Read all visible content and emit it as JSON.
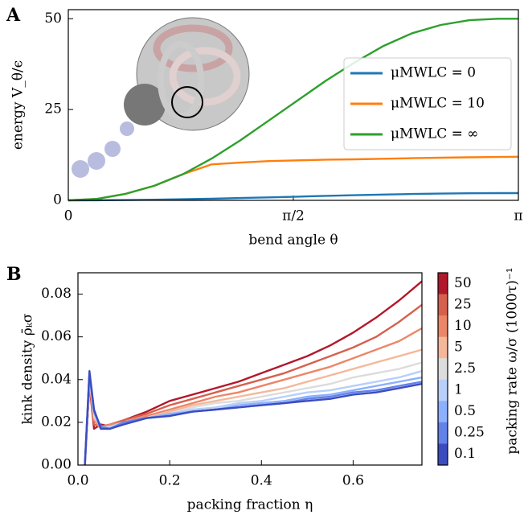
{
  "chart_data": [
    {
      "type": "line",
      "title": "A",
      "xlabel": "bend angle θ",
      "ylabel": "energy V_θ/ϵ",
      "x": [
        0,
        0.2,
        0.4,
        0.6,
        0.8,
        1.0,
        1.2,
        1.4,
        1.6,
        1.8,
        2.0,
        2.2,
        2.4,
        2.6,
        2.8,
        3.0,
        3.1416
      ],
      "series": [
        {
          "name": "μMWLC = 0",
          "color": "#1f77b4",
          "values": [
            0,
            0.02,
            0.08,
            0.17,
            0.3,
            0.46,
            0.64,
            0.83,
            1.03,
            1.23,
            1.42,
            1.59,
            1.74,
            1.86,
            1.94,
            1.99,
            2.0
          ]
        },
        {
          "name": "μMWLC = 10",
          "color": "#ff7f0e",
          "values": [
            0,
            0.4,
            1.8,
            4.0,
            7.2,
            9.9,
            10.4,
            10.8,
            11.0,
            11.2,
            11.3,
            11.45,
            11.6,
            11.75,
            11.85,
            11.95,
            12.0
          ]
        },
        {
          "name": "μMWLC = ∞",
          "color": "#2ca02c",
          "values": [
            0,
            0.4,
            1.8,
            4.0,
            7.2,
            11.5,
            16.5,
            22,
            27.5,
            33,
            38,
            42.5,
            46,
            48.3,
            49.6,
            50,
            50
          ]
        }
      ],
      "xlim": [
        0,
        3.1416
      ],
      "xticks": [
        0,
        {
          "value": 1.5708,
          "label": "π/2"
        },
        {
          "value": 3.1416,
          "label": "π"
        }
      ],
      "ylim": [
        0,
        52.5
      ],
      "yticks": [
        0,
        25,
        50
      ],
      "legend": "center right"
    },
    {
      "type": "line",
      "title": "B",
      "xlabel": "packing fraction η",
      "ylabel": "kink density ρ̄ₖσ",
      "colorbar_label": "packing rate ω/σ (1000τ)⁻¹",
      "x": [
        0.015,
        0.025,
        0.035,
        0.05,
        0.07,
        0.1,
        0.15,
        0.2,
        0.25,
        0.3,
        0.35,
        0.4,
        0.45,
        0.5,
        0.55,
        0.6,
        0.65,
        0.7,
        0.75
      ],
      "series": [
        {
          "name": "50",
          "color": "#b2182b",
          "values": [
            0,
            0.038,
            0.017,
            0.019,
            0.018,
            0.021,
            0.025,
            0.03,
            0.033,
            0.036,
            0.039,
            0.043,
            0.047,
            0.051,
            0.056,
            0.062,
            0.069,
            0.077,
            0.086
          ]
        },
        {
          "name": "25",
          "color": "#d6604d",
          "values": [
            0,
            0.039,
            0.019,
            0.018,
            0.019,
            0.021,
            0.024,
            0.028,
            0.031,
            0.034,
            0.037,
            0.04,
            0.043,
            0.047,
            0.051,
            0.055,
            0.06,
            0.067,
            0.075
          ]
        },
        {
          "name": "10",
          "color": "#ec8668",
          "values": [
            0,
            0.04,
            0.021,
            0.017,
            0.019,
            0.02,
            0.023,
            0.026,
            0.029,
            0.032,
            0.034,
            0.037,
            0.04,
            0.043,
            0.046,
            0.05,
            0.054,
            0.058,
            0.064
          ]
        },
        {
          "name": "5",
          "color": "#f5b79a",
          "values": [
            0,
            0.041,
            0.022,
            0.018,
            0.018,
            0.02,
            0.022,
            0.025,
            0.028,
            0.03,
            0.032,
            0.034,
            0.036,
            0.039,
            0.042,
            0.045,
            0.048,
            0.051,
            0.054
          ]
        },
        {
          "name": "2.5",
          "color": "#dcdcdc",
          "values": [
            0,
            0.041,
            0.023,
            0.018,
            0.017,
            0.02,
            0.022,
            0.024,
            0.027,
            0.029,
            0.03,
            0.032,
            0.034,
            0.036,
            0.038,
            0.041,
            0.043,
            0.045,
            0.048
          ]
        },
        {
          "name": "1",
          "color": "#b7cff9",
          "values": [
            0,
            0.042,
            0.024,
            0.017,
            0.018,
            0.02,
            0.022,
            0.024,
            0.026,
            0.027,
            0.029,
            0.03,
            0.032,
            0.034,
            0.035,
            0.037,
            0.039,
            0.041,
            0.044
          ]
        },
        {
          "name": "0.5",
          "color": "#8db0fe",
          "values": [
            0,
            0.043,
            0.025,
            0.017,
            0.017,
            0.02,
            0.022,
            0.024,
            0.025,
            0.026,
            0.028,
            0.029,
            0.03,
            0.032,
            0.033,
            0.035,
            0.037,
            0.039,
            0.041
          ]
        },
        {
          "name": "0.25",
          "color": "#6282ea",
          "values": [
            0,
            0.043,
            0.025,
            0.018,
            0.017,
            0.02,
            0.022,
            0.023,
            0.025,
            0.026,
            0.027,
            0.028,
            0.029,
            0.031,
            0.032,
            0.034,
            0.035,
            0.037,
            0.039
          ]
        },
        {
          "name": "0.1",
          "color": "#3b4cc0",
          "values": [
            0,
            0.044,
            0.026,
            0.017,
            0.017,
            0.019,
            0.022,
            0.023,
            0.025,
            0.026,
            0.027,
            0.028,
            0.029,
            0.03,
            0.031,
            0.033,
            0.034,
            0.036,
            0.038
          ]
        }
      ],
      "xlim": [
        0,
        0.75
      ],
      "xticks": [
        {
          "value": 0,
          "label": "0.0"
        },
        0.2,
        0.4,
        0.6
      ],
      "ylim": [
        0,
        0.09
      ],
      "yticks": [
        {
          "value": 0,
          "label": "0.00"
        },
        0.02,
        0.04,
        0.06,
        0.08
      ]
    }
  ]
}
